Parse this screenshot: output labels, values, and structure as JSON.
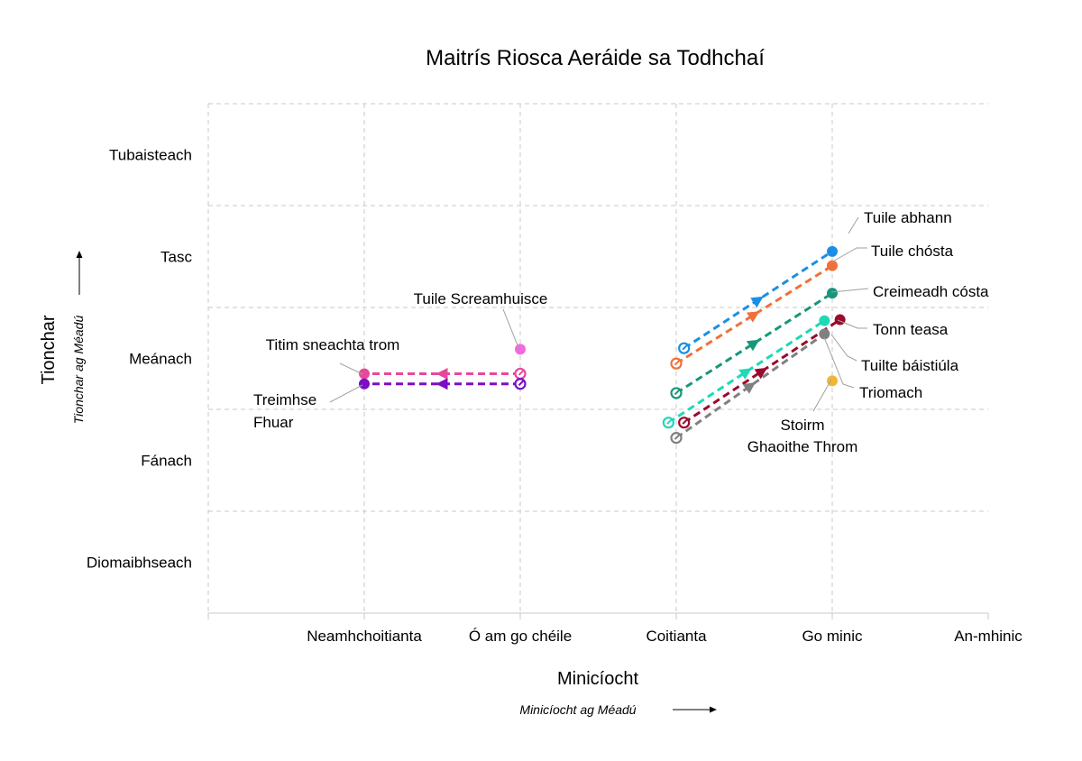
{
  "chart_data": {
    "type": "scatter",
    "title": "Maitrís Riosca Aeráide sa Todhchaí",
    "xlabel": "Minicíocht",
    "xlabel_sub": "Minicíocht ag Méadú",
    "ylabel": "Tionchar",
    "ylabel_sub": "Tionchar ag Méadú",
    "x_categories": [
      "Neamhchoitianta",
      "Ó am go chéile",
      "Coitianta",
      "Go minic",
      "An-mhinic"
    ],
    "y_categories": [
      "Diomaibhseach",
      "Fánach",
      "Meánach",
      "Tasc",
      "Tubaisteach"
    ],
    "xlim": [
      0,
      5
    ],
    "ylim": [
      0.5,
      5.5
    ],
    "grid": true,
    "legend": "none",
    "series": [
      {
        "name": "Tuile abhann",
        "color": "#1a8fe3",
        "from": [
          3.05,
          3.1
        ],
        "to": [
          4.0,
          4.05
        ]
      },
      {
        "name": "Tuile chósta",
        "color": "#f0703a",
        "from": [
          3.0,
          2.95
        ],
        "to": [
          4.0,
          3.91
        ]
      },
      {
        "name": "Creimeadh cósta",
        "color": "#18967a",
        "from": [
          3.0,
          2.66
        ],
        "to": [
          4.0,
          3.64
        ]
      },
      {
        "name": "Tonn teasa",
        "color": "#1fd8b6",
        "from": [
          2.95,
          2.37
        ],
        "to": [
          3.95,
          3.37
        ]
      },
      {
        "name": "Tuilte báistiúla",
        "color": "#9b0a2c",
        "from": [
          3.05,
          2.37
        ],
        "to": [
          4.05,
          3.38
        ]
      },
      {
        "name": "Triomach",
        "color": "#808080",
        "from": [
          3.0,
          2.22
        ],
        "to": [
          3.95,
          3.24
        ]
      },
      {
        "name": "Stoirm Ghaoithe Throm",
        "color": "#f0b634",
        "from": null,
        "to": [
          4.0,
          2.78
        ]
      },
      {
        "name": "Tuile Screamhuisce",
        "color": "#f468e2",
        "from": null,
        "to": [
          2.0,
          3.09
        ]
      },
      {
        "name": "Titim sneachta trom",
        "color": "#e8489c",
        "from": [
          2.0,
          2.85
        ],
        "to": [
          1.0,
          2.85
        ]
      },
      {
        "name": "Treimhse Fhuar",
        "color": "#7b0dc6",
        "from": [
          2.0,
          2.75
        ],
        "to": [
          1.0,
          2.75
        ]
      }
    ],
    "annotations": [
      "Tuile abhann",
      "Tuile chósta",
      "Creimeadh cósta",
      "Tonn teasa",
      "Tuilte báistiúla",
      "Triomach",
      "Stoirm",
      "Ghaoithe Throm",
      "Tuile Screamhuisce",
      "Titim sneachta trom",
      "Treimhse",
      "Fhuar"
    ]
  }
}
